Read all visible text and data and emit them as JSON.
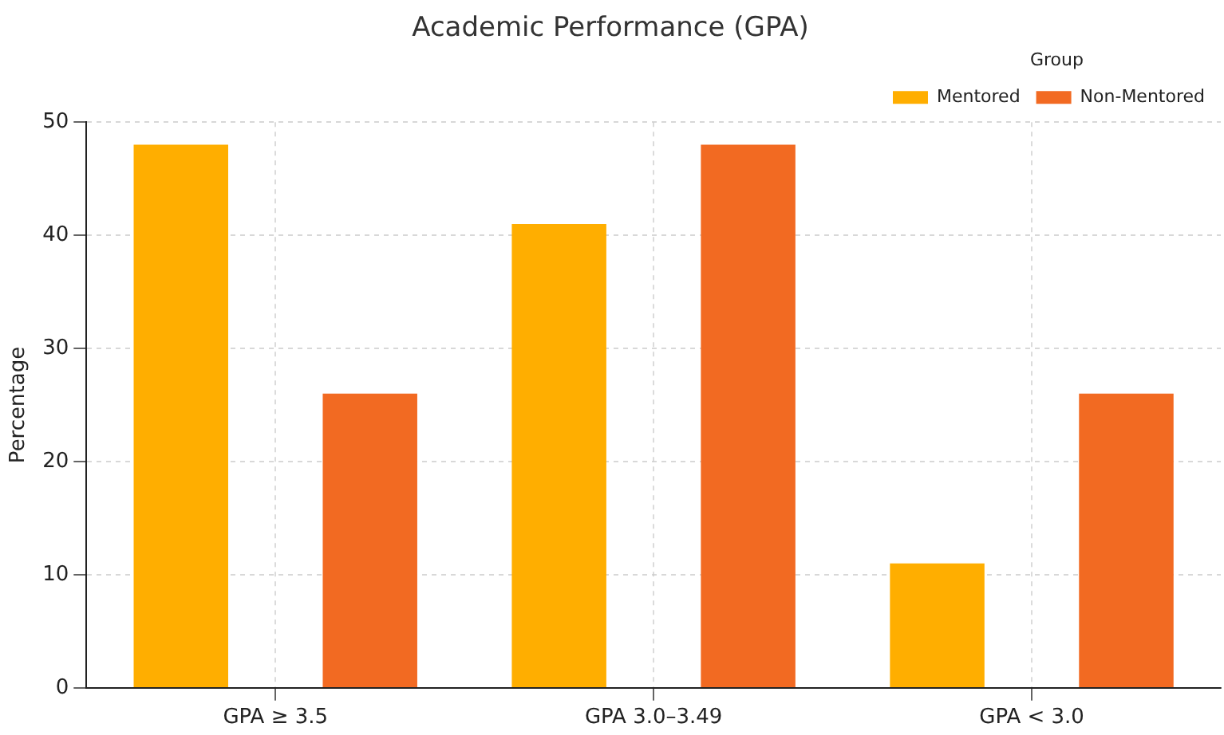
{
  "chart_data": {
    "type": "bar",
    "title": "Academic Performance (GPA)",
    "ylabel": "Percentage",
    "legend_title": "Group",
    "categories": [
      "GPA ≥ 3.5",
      "GPA 3.0–3.49",
      "GPA < 3.0"
    ],
    "series": [
      {
        "name": "Mentored",
        "color": "#ffae00",
        "values": [
          48,
          41,
          11
        ]
      },
      {
        "name": "Non-Mentored",
        "color": "#f26a22",
        "values": [
          26,
          48,
          26
        ]
      }
    ],
    "ylim": [
      0,
      50
    ],
    "yticks": [
      0,
      10,
      20,
      30,
      40,
      50
    ],
    "grid": true,
    "legend": "top right"
  }
}
